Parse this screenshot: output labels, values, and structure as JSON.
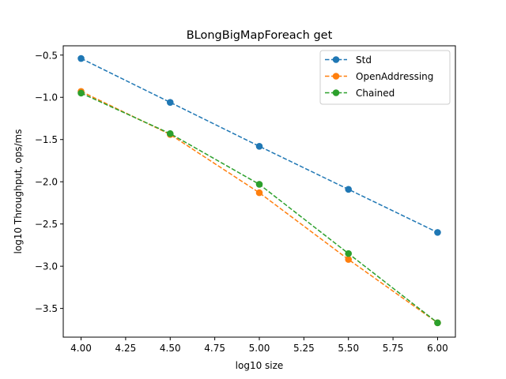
{
  "chart_data": {
    "type": "line",
    "title": "BLongBigMapForeach get",
    "xlabel": "log10 size",
    "ylabel": "log10 Throughput, ops/ms",
    "x": [
      4.0,
      4.5,
      5.0,
      5.5,
      6.0
    ],
    "xlim": [
      3.9,
      6.1
    ],
    "ylim": [
      -3.84,
      -0.39
    ],
    "x_ticks": [
      "4.00",
      "4.25",
      "4.50",
      "4.75",
      "5.00",
      "5.25",
      "5.50",
      "5.75",
      "6.00"
    ],
    "y_ticks": [
      "−0.5",
      "−1.0",
      "−1.5",
      "−2.0",
      "−2.5",
      "−3.0",
      "−3.5"
    ],
    "grid": false,
    "legend_position": "top-right",
    "series": [
      {
        "name": "Std",
        "color": "#1f77b4",
        "values": [
          -0.54,
          -1.06,
          -1.58,
          -2.09,
          -2.6
        ]
      },
      {
        "name": "OpenAddressing",
        "color": "#ff7f0e",
        "values": [
          -0.93,
          -1.44,
          -2.13,
          -2.92,
          -3.67
        ]
      },
      {
        "name": "Chained",
        "color": "#2ca02c",
        "values": [
          -0.95,
          -1.43,
          -2.03,
          -2.85,
          -3.67
        ]
      }
    ]
  }
}
